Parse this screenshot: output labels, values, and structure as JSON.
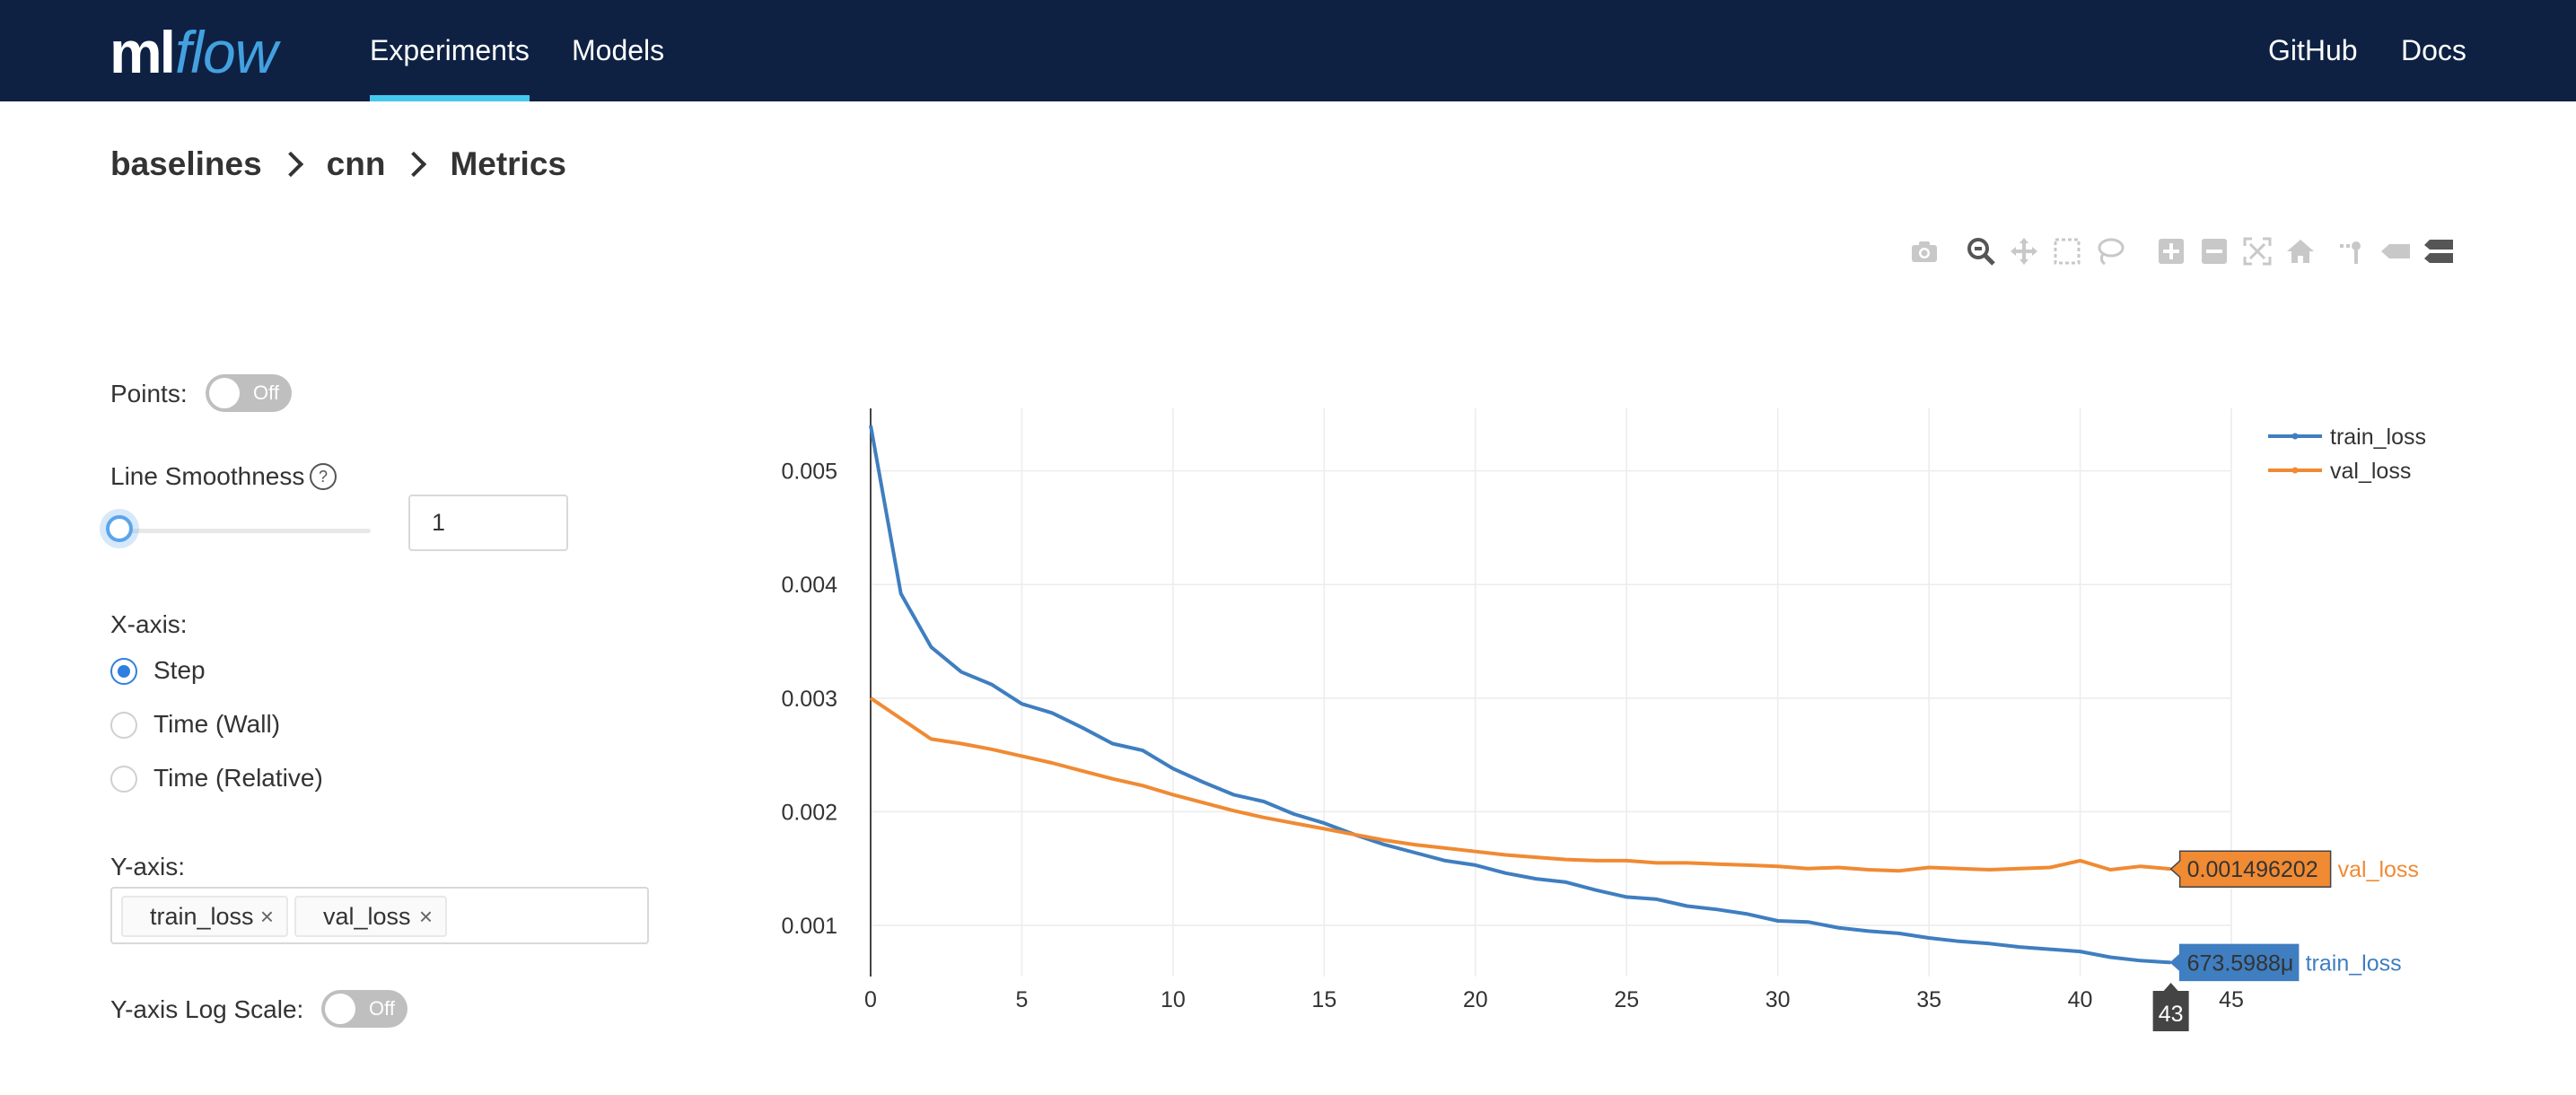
{
  "app": {
    "logo_ml": "ml",
    "logo_flow": "flow",
    "nav": [
      {
        "label": "Experiments",
        "active": true
      },
      {
        "label": "Models",
        "active": false
      }
    ],
    "nav_right": [
      {
        "label": "GitHub"
      },
      {
        "label": "Docs"
      }
    ]
  },
  "breadcrumb": [
    "baselines",
    "cnn",
    "Metrics"
  ],
  "modebar_icons": [
    "camera-icon",
    "zoom-icon",
    "pan-icon",
    "box-select-icon",
    "lasso-select-icon",
    "zoom-in-icon",
    "zoom-out-icon",
    "autoscale-icon",
    "reset-axes-icon",
    "spike-lines-icon",
    "hover-closest-icon",
    "hover-compare-icon"
  ],
  "controls": {
    "points_label": "Points:",
    "points_toggle": "Off",
    "smoothness_label": "Line Smoothness",
    "smoothness_help": "?",
    "smoothness_value": "1",
    "xaxis_label": "X-axis:",
    "xaxis_options": [
      "Step",
      "Time (Wall)",
      "Time (Relative)"
    ],
    "xaxis_selected": "Step",
    "yaxis_label": "Y-axis:",
    "yaxis_tags": [
      "train_loss",
      "val_loss"
    ],
    "tag_remove": "×",
    "logscale_label": "Y-axis Log Scale:",
    "logscale_toggle": "Off"
  },
  "colors": {
    "train_loss": "#3f7ec0",
    "val_loss": "#f08a33",
    "header_bg": "#0e2143",
    "accent": "#43c9ed"
  },
  "chart_data": {
    "type": "line",
    "xlabel": "",
    "ylabel": "",
    "xlim": [
      0,
      45
    ],
    "ylim": [
      0.00055,
      0.00555
    ],
    "x_ticks": [
      0,
      5,
      10,
      15,
      20,
      25,
      30,
      35,
      40,
      45
    ],
    "y_ticks": [
      0.001,
      0.002,
      0.003,
      0.004,
      0.005
    ],
    "y_tick_labels": [
      "0.001",
      "0.002",
      "0.003",
      "0.004",
      "0.005"
    ],
    "grid": true,
    "legend_position": "top-right",
    "series": [
      {
        "name": "train_loss",
        "color": "#3f7ec0",
        "x": [
          0,
          1,
          2,
          3,
          4,
          5,
          6,
          7,
          8,
          9,
          10,
          11,
          12,
          13,
          14,
          15,
          16,
          17,
          18,
          19,
          20,
          21,
          22,
          23,
          24,
          25,
          26,
          27,
          28,
          29,
          30,
          31,
          32,
          33,
          34,
          35,
          36,
          37,
          38,
          39,
          40,
          41,
          42,
          43
        ],
        "y": [
          0.0054,
          0.00392,
          0.00345,
          0.00323,
          0.00312,
          0.00295,
          0.00287,
          0.00274,
          0.0026,
          0.00254,
          0.00238,
          0.00226,
          0.00215,
          0.00209,
          0.00198,
          0.0019,
          0.0018,
          0.00171,
          0.00164,
          0.00157,
          0.00153,
          0.00146,
          0.00141,
          0.00138,
          0.00131,
          0.00125,
          0.00123,
          0.00117,
          0.00114,
          0.0011,
          0.00104,
          0.00103,
          0.00098,
          0.00095,
          0.00093,
          0.00089,
          0.00086,
          0.00084,
          0.00081,
          0.00079,
          0.00077,
          0.00072,
          0.00069,
          0.000673599
        ]
      },
      {
        "name": "val_loss",
        "color": "#f08a33",
        "x": [
          0,
          1,
          2,
          3,
          4,
          5,
          6,
          7,
          8,
          9,
          10,
          11,
          12,
          13,
          14,
          15,
          16,
          17,
          18,
          19,
          20,
          21,
          22,
          23,
          24,
          25,
          26,
          27,
          28,
          29,
          30,
          31,
          32,
          33,
          34,
          35,
          36,
          37,
          38,
          39,
          40,
          41,
          42,
          43
        ],
        "y": [
          0.003,
          0.00282,
          0.00264,
          0.0026,
          0.00255,
          0.00249,
          0.00243,
          0.00236,
          0.00229,
          0.00223,
          0.00215,
          0.00208,
          0.00201,
          0.00195,
          0.0019,
          0.00185,
          0.0018,
          0.00175,
          0.00171,
          0.00168,
          0.00165,
          0.00162,
          0.0016,
          0.00158,
          0.00157,
          0.00157,
          0.00155,
          0.00155,
          0.00154,
          0.00153,
          0.00152,
          0.0015,
          0.00151,
          0.00149,
          0.00148,
          0.00151,
          0.0015,
          0.00149,
          0.0015,
          0.00151,
          0.00157,
          0.00149,
          0.00152,
          0.001496202
        ]
      }
    ],
    "hover": {
      "x": 43,
      "x_label": "43",
      "labels": [
        {
          "series": "val_loss",
          "value": "0.001496202",
          "name": "val_loss"
        },
        {
          "series": "train_loss",
          "value": "673.5988μ",
          "name": "train_loss"
        }
      ]
    }
  }
}
